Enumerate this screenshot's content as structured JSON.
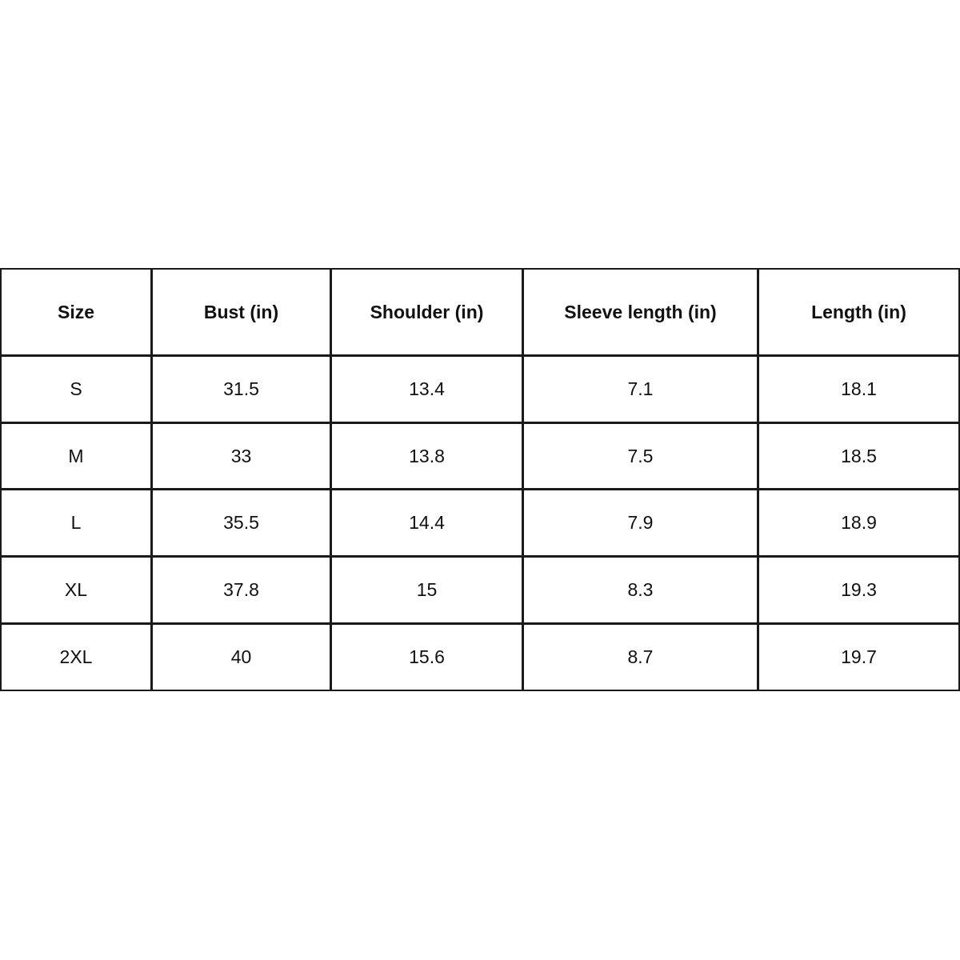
{
  "table": {
    "header": [
      "Size",
      "Bust (in)",
      "Shoulder (in)",
      "Sleeve length (in)",
      "Length (in)"
    ],
    "rows": [
      [
        "S",
        31.5,
        13.4,
        7.1,
        18.1
      ],
      [
        "M",
        33,
        13.8,
        7.5,
        18.5
      ],
      [
        "L",
        35.5,
        14.4,
        7.9,
        18.9
      ],
      [
        "XL",
        37.8,
        15,
        8.3,
        19.3
      ],
      [
        "2XL",
        40,
        15.6,
        8.7,
        19.7
      ]
    ]
  }
}
